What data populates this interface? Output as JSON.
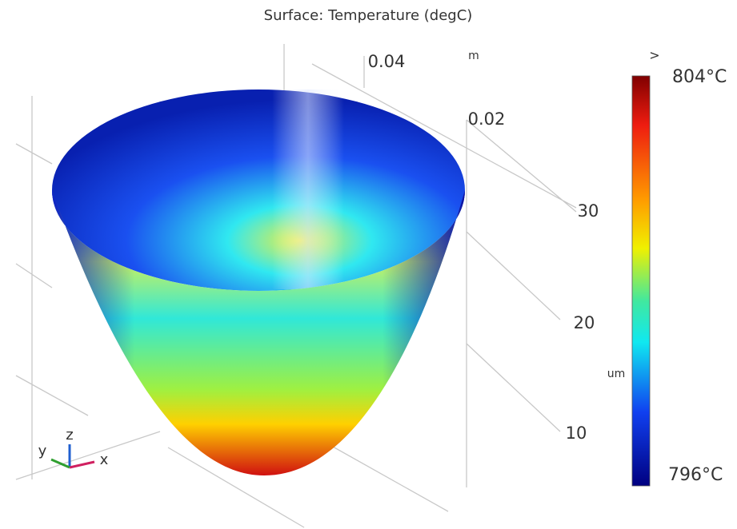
{
  "title": "Surface: Temperature (degC)",
  "axis_labels": {
    "top_unit": "m",
    "top_ticks": [
      "0.04",
      "0.02"
    ],
    "side_ticks": [
      "30",
      "20",
      "10"
    ],
    "side_unit": "um"
  },
  "triad": {
    "z": "z",
    "y": "y",
    "x": "x"
  },
  "colorbar": {
    "expand": ">",
    "max_label": "804°C",
    "min_label": "796°C"
  }
}
